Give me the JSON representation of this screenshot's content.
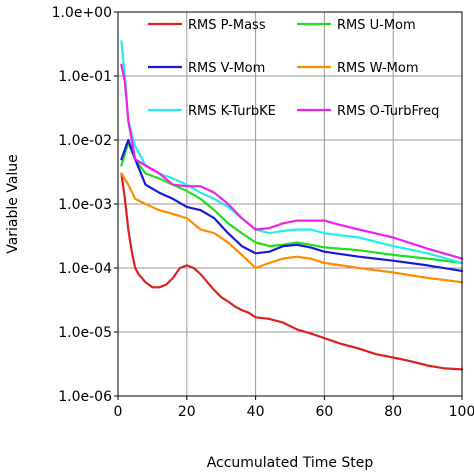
{
  "chart_data": {
    "type": "line",
    "xlabel": "Accumulated Time Step",
    "ylabel": "Variable Value",
    "xlim": [
      0,
      100
    ],
    "ylim": [
      1e-06,
      1
    ],
    "yscale": "log",
    "grid": true,
    "legend_position": "top",
    "x_ticks": [
      {
        "value": 0,
        "label": "0"
      },
      {
        "value": 20,
        "label": "20"
      },
      {
        "value": 40,
        "label": "40"
      },
      {
        "value": 60,
        "label": "60"
      },
      {
        "value": 80,
        "label": "80"
      },
      {
        "value": 100,
        "label": "100"
      }
    ],
    "y_ticks": [
      {
        "value": 1.0,
        "label": "1.0e+00"
      },
      {
        "value": 0.1,
        "label": "1.0e-01"
      },
      {
        "value": 0.01,
        "label": "1.0e-02"
      },
      {
        "value": 0.001,
        "label": "1.0e-03"
      },
      {
        "value": 0.0001,
        "label": "1.0e-04"
      },
      {
        "value": 1e-05,
        "label": "1.0e-05"
      },
      {
        "value": 1e-06,
        "label": "1.0e-06"
      }
    ],
    "series": [
      {
        "name": "RMS P-Mass",
        "color": "#e02020",
        "points": [
          [
            1,
            0.003
          ],
          [
            2,
            0.0012
          ],
          [
            3,
            0.0004
          ],
          [
            4,
            0.00018
          ],
          [
            5,
            0.0001
          ],
          [
            6,
            8e-05
          ],
          [
            8,
            6e-05
          ],
          [
            10,
            5e-05
          ],
          [
            12,
            5e-05
          ],
          [
            14,
            5.5e-05
          ],
          [
            16,
            7e-05
          ],
          [
            18,
            0.0001
          ],
          [
            20,
            0.00011
          ],
          [
            22,
            0.0001
          ],
          [
            24,
            8e-05
          ],
          [
            26,
            6e-05
          ],
          [
            28,
            4.5e-05
          ],
          [
            30,
            3.5e-05
          ],
          [
            32,
            3e-05
          ],
          [
            34,
            2.5e-05
          ],
          [
            36,
            2.2e-05
          ],
          [
            38,
            2e-05
          ],
          [
            40,
            1.7e-05
          ],
          [
            44,
            1.6e-05
          ],
          [
            48,
            1.4e-05
          ],
          [
            52,
            1.1e-05
          ],
          [
            56,
            9.5e-06
          ],
          [
            60,
            8e-06
          ],
          [
            65,
            6.5e-06
          ],
          [
            70,
            5.5e-06
          ],
          [
            75,
            4.5e-06
          ],
          [
            80,
            4e-06
          ],
          [
            85,
            3.5e-06
          ],
          [
            90,
            3e-06
          ],
          [
            95,
            2.7e-06
          ],
          [
            100,
            2.6e-06
          ]
        ]
      },
      {
        "name": "RMS U-Mom",
        "color": "#22dd22",
        "points": [
          [
            1,
            0.004
          ],
          [
            3,
            0.009
          ],
          [
            5,
            0.005
          ],
          [
            8,
            0.003
          ],
          [
            12,
            0.0025
          ],
          [
            16,
            0.002
          ],
          [
            20,
            0.0016
          ],
          [
            24,
            0.0012
          ],
          [
            28,
            0.0008
          ],
          [
            32,
            0.0005
          ],
          [
            36,
            0.00035
          ],
          [
            40,
            0.00025
          ],
          [
            44,
            0.00022
          ],
          [
            48,
            0.00023
          ],
          [
            52,
            0.00025
          ],
          [
            56,
            0.00023
          ],
          [
            60,
            0.00021
          ],
          [
            70,
            0.00019
          ],
          [
            80,
            0.00016
          ],
          [
            90,
            0.00014
          ],
          [
            100,
            0.00012
          ]
        ]
      },
      {
        "name": "RMS V-Mom",
        "color": "#1a1ad6",
        "points": [
          [
            1,
            0.005
          ],
          [
            3,
            0.01
          ],
          [
            5,
            0.005
          ],
          [
            8,
            0.002
          ],
          [
            12,
            0.0015
          ],
          [
            16,
            0.0012
          ],
          [
            20,
            0.0009
          ],
          [
            24,
            0.0008
          ],
          [
            28,
            0.0006
          ],
          [
            32,
            0.00035
          ],
          [
            36,
            0.00022
          ],
          [
            40,
            0.00017
          ],
          [
            44,
            0.00018
          ],
          [
            48,
            0.00022
          ],
          [
            52,
            0.00023
          ],
          [
            56,
            0.00021
          ],
          [
            60,
            0.00018
          ],
          [
            70,
            0.00015
          ],
          [
            80,
            0.00013
          ],
          [
            90,
            0.00011
          ],
          [
            100,
            9e-05
          ]
        ]
      },
      {
        "name": "RMS W-Mom",
        "color": "#ff8c00",
        "points": [
          [
            1,
            0.003
          ],
          [
            3,
            0.002
          ],
          [
            5,
            0.0012
          ],
          [
            8,
            0.001
          ],
          [
            12,
            0.0008
          ],
          [
            16,
            0.0007
          ],
          [
            20,
            0.0006
          ],
          [
            24,
            0.0004
          ],
          [
            28,
            0.00035
          ],
          [
            32,
            0.00025
          ],
          [
            36,
            0.00016
          ],
          [
            40,
            0.0001
          ],
          [
            44,
            0.00012
          ],
          [
            48,
            0.00014
          ],
          [
            52,
            0.00015
          ],
          [
            56,
            0.00014
          ],
          [
            60,
            0.00012
          ],
          [
            70,
            0.0001
          ],
          [
            80,
            8.5e-05
          ],
          [
            90,
            7e-05
          ],
          [
            100,
            6e-05
          ]
        ]
      },
      {
        "name": "RMS K-TurbKE",
        "color": "#22eeee",
        "points": [
          [
            1,
            0.35
          ],
          [
            2,
            0.1
          ],
          [
            3,
            0.02
          ],
          [
            5,
            0.008
          ],
          [
            8,
            0.004
          ],
          [
            12,
            0.003
          ],
          [
            16,
            0.0025
          ],
          [
            20,
            0.002
          ],
          [
            24,
            0.0015
          ],
          [
            28,
            0.0012
          ],
          [
            32,
            0.0009
          ],
          [
            36,
            0.0006
          ],
          [
            40,
            0.0004
          ],
          [
            44,
            0.00035
          ],
          [
            48,
            0.00038
          ],
          [
            52,
            0.0004
          ],
          [
            56,
            0.0004
          ],
          [
            60,
            0.00035
          ],
          [
            70,
            0.0003
          ],
          [
            80,
            0.00022
          ],
          [
            90,
            0.00017
          ],
          [
            100,
            0.00012
          ]
        ]
      },
      {
        "name": "RMS O-TurbFreq",
        "color": "#ee22ee",
        "points": [
          [
            1,
            0.15
          ],
          [
            2,
            0.08
          ],
          [
            3,
            0.02
          ],
          [
            5,
            0.005
          ],
          [
            8,
            0.004
          ],
          [
            12,
            0.003
          ],
          [
            16,
            0.002
          ],
          [
            20,
            0.0019
          ],
          [
            24,
            0.0019
          ],
          [
            28,
            0.0015
          ],
          [
            32,
            0.001
          ],
          [
            36,
            0.0006
          ],
          [
            40,
            0.0004
          ],
          [
            44,
            0.00042
          ],
          [
            48,
            0.0005
          ],
          [
            52,
            0.00055
          ],
          [
            56,
            0.00055
          ],
          [
            60,
            0.00055
          ],
          [
            64,
            0.00048
          ],
          [
            70,
            0.0004
          ],
          [
            80,
            0.0003
          ],
          [
            90,
            0.0002
          ],
          [
            100,
            0.00014
          ]
        ]
      }
    ]
  }
}
